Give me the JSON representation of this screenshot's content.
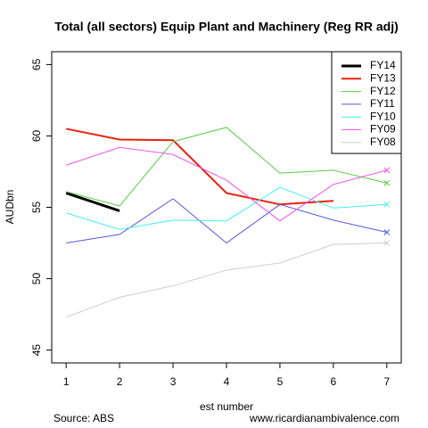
{
  "chart_data": {
    "type": "line",
    "title": "Total (all sectors) Equip Plant and Machinery (Reg RR adj)",
    "xlabel": "est number",
    "ylabel": "AUDbn",
    "footnote_left": "Source: ABS",
    "footnote_right": "www.ricardianambivalence.com",
    "x": [
      1,
      2,
      3,
      4,
      5,
      6,
      7
    ],
    "xlim": [
      0.73,
      7.27
    ],
    "xticks": [
      1,
      2,
      3,
      4,
      5,
      6,
      7
    ],
    "ylim": [
      44.1,
      65.9
    ],
    "yticks": [
      45,
      50,
      55,
      60,
      65
    ],
    "legend": "top-right",
    "end_marker": "x",
    "series": [
      {
        "name": "FY14",
        "color": "#000000",
        "width": 3,
        "values": [
          56.0,
          54.75,
          null,
          null,
          null,
          null,
          null
        ]
      },
      {
        "name": "FY13",
        "color": "#e8210f",
        "width": 2,
        "values": [
          60.5,
          59.75,
          59.7,
          56.0,
          55.2,
          55.45,
          null
        ]
      },
      {
        "name": "FY12",
        "color": "#55cc44",
        "width": 1,
        "values": [
          56.1,
          55.1,
          59.6,
          60.6,
          57.4,
          57.6,
          56.7
        ]
      },
      {
        "name": "FY11",
        "color": "#5555dd",
        "width": 1,
        "values": [
          52.5,
          53.1,
          55.6,
          52.5,
          55.2,
          54.1,
          53.25
        ]
      },
      {
        "name": "FY10",
        "color": "#44eeee",
        "width": 1,
        "values": [
          54.6,
          53.45,
          54.1,
          54.05,
          56.4,
          54.95,
          55.2
        ]
      },
      {
        "name": "FY09",
        "color": "#ee55ee",
        "width": 1,
        "values": [
          57.95,
          59.2,
          58.7,
          56.9,
          54.05,
          56.6,
          57.6
        ]
      },
      {
        "name": "FY08",
        "color": "#cccccc",
        "width": 1,
        "values": [
          47.3,
          48.7,
          49.5,
          50.6,
          51.1,
          52.4,
          52.5
        ]
      }
    ]
  }
}
